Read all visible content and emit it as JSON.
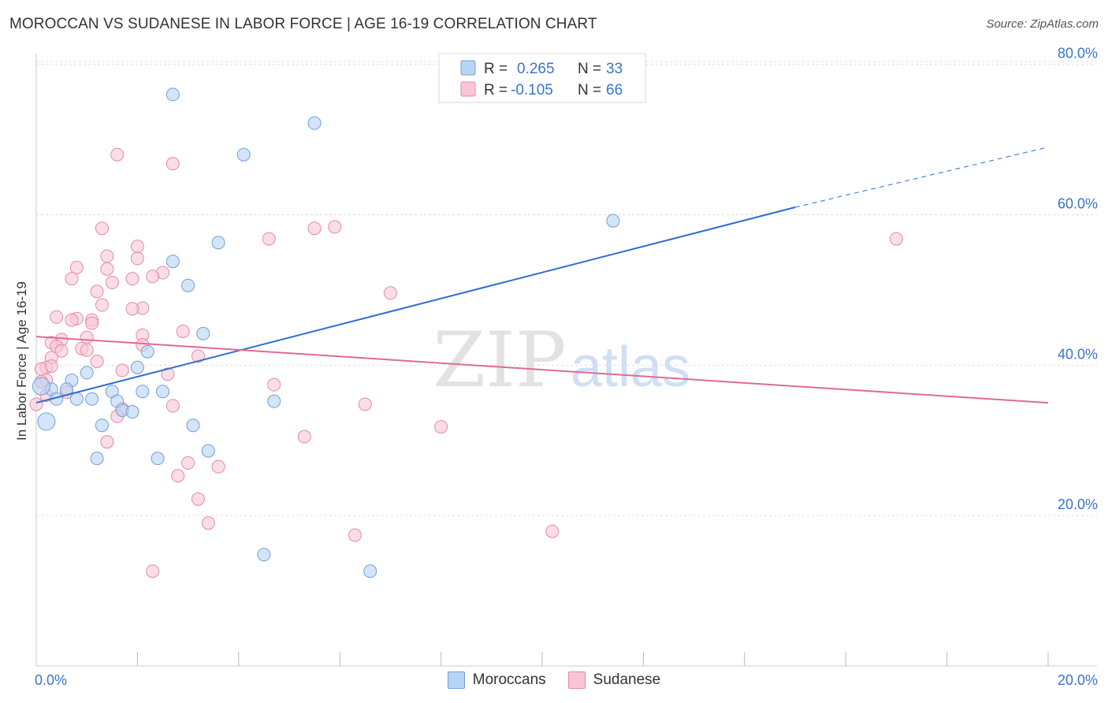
{
  "title": "MOROCCAN VS SUDANESE IN LABOR FORCE | AGE 16-19 CORRELATION CHART",
  "source": "Source: ZipAtlas.com",
  "watermark": {
    "zip": "ZIP",
    "atlas": "atlas"
  },
  "legend_top": {
    "series1": {
      "r_label": "R =",
      "r_value": "0.265",
      "n_label": "N =",
      "n_value": "33"
    },
    "series2": {
      "r_label": "R =",
      "r_value": "-0.105",
      "n_label": "N =",
      "n_value": "66"
    }
  },
  "colors": {
    "moroccans_fill": "#b8d4f5",
    "moroccans_stroke": "#6f9fd8",
    "moroccans_line": "#2a6fcf",
    "sudanese_fill": "#f8c6d6",
    "sudanese_stroke": "#e48aa7",
    "sudanese_line": "#e06a94",
    "value_text": "#3a74c8",
    "grid": "#dddddd"
  },
  "chart_data": {
    "type": "scatter",
    "title": "MOROCCAN VS SUDANESE IN LABOR FORCE | AGE 16-19 CORRELATION CHART",
    "xlabel": "",
    "ylabel": "In Labor Force | Age 16-19",
    "xlim": [
      0,
      20
    ],
    "ylim": [
      0,
      82
    ],
    "x_tick_labels": [
      "0.0%",
      "20.0%"
    ],
    "y_ticks": [
      20,
      40,
      60,
      80
    ],
    "y_tick_labels": [
      "20.0%",
      "40.0%",
      "60.0%",
      "80.0%"
    ],
    "grid": true,
    "series": [
      {
        "name": "Moroccans",
        "r": 0.265,
        "n": 33,
        "trend": {
          "x_start": 0,
          "y_start": 35.0,
          "x_solid_end": 15,
          "y_solid_end": 61.0,
          "x_dash_end": 20,
          "y_dash_end": 69.0
        },
        "points": [
          [
            2.7,
            76.0
          ],
          [
            5.5,
            72.2
          ],
          [
            4.1,
            68.0
          ],
          [
            11.4,
            59.2
          ],
          [
            3.6,
            56.3
          ],
          [
            2.7,
            53.8
          ],
          [
            3.0,
            50.6
          ],
          [
            3.3,
            44.2
          ],
          [
            2.2,
            41.8
          ],
          [
            2.0,
            39.7
          ],
          [
            1.0,
            39.0
          ],
          [
            0.7,
            38.0
          ],
          [
            0.3,
            36.8
          ],
          [
            0.6,
            36.8
          ],
          [
            0.1,
            37.2
          ],
          [
            1.5,
            36.5
          ],
          [
            2.1,
            36.5
          ],
          [
            2.5,
            36.5
          ],
          [
            0.4,
            35.5
          ],
          [
            0.8,
            35.5
          ],
          [
            1.1,
            35.5
          ],
          [
            1.6,
            35.2
          ],
          [
            4.7,
            35.2
          ],
          [
            1.7,
            34.0
          ],
          [
            1.9,
            33.8
          ],
          [
            0.2,
            32.5
          ],
          [
            1.3,
            32.0
          ],
          [
            3.1,
            32.0
          ],
          [
            3.4,
            28.6
          ],
          [
            1.2,
            27.6
          ],
          [
            2.4,
            27.6
          ],
          [
            4.5,
            14.8
          ],
          [
            6.6,
            12.6
          ]
        ]
      },
      {
        "name": "Sudanese",
        "r": -0.105,
        "n": 66,
        "trend": {
          "x_start": 0,
          "y_start": 43.8,
          "x_end": 20,
          "y_end": 35.0
        },
        "points": [
          [
            1.6,
            68.0
          ],
          [
            2.7,
            66.8
          ],
          [
            5.9,
            58.4
          ],
          [
            5.5,
            58.2
          ],
          [
            1.3,
            58.2
          ],
          [
            4.6,
            56.8
          ],
          [
            17.0,
            56.8
          ],
          [
            2.0,
            55.8
          ],
          [
            1.4,
            54.5
          ],
          [
            2.0,
            54.2
          ],
          [
            0.8,
            53.0
          ],
          [
            1.4,
            52.8
          ],
          [
            2.5,
            52.3
          ],
          [
            2.3,
            51.8
          ],
          [
            0.7,
            51.5
          ],
          [
            1.9,
            51.5
          ],
          [
            1.5,
            51.0
          ],
          [
            1.2,
            49.8
          ],
          [
            7.0,
            49.6
          ],
          [
            1.3,
            48.0
          ],
          [
            2.1,
            47.6
          ],
          [
            1.9,
            47.5
          ],
          [
            0.4,
            46.4
          ],
          [
            0.8,
            46.2
          ],
          [
            0.7,
            46.0
          ],
          [
            1.1,
            46.0
          ],
          [
            1.1,
            45.6
          ],
          [
            2.9,
            44.5
          ],
          [
            2.1,
            44.0
          ],
          [
            1.0,
            43.7
          ],
          [
            0.5,
            43.4
          ],
          [
            0.3,
            43.0
          ],
          [
            2.1,
            42.7
          ],
          [
            0.4,
            42.5
          ],
          [
            0.9,
            42.2
          ],
          [
            1.0,
            42.0
          ],
          [
            0.5,
            41.9
          ],
          [
            3.2,
            41.2
          ],
          [
            0.3,
            41.0
          ],
          [
            1.2,
            40.5
          ],
          [
            0.2,
            39.7
          ],
          [
            0.1,
            39.5
          ],
          [
            1.7,
            39.3
          ],
          [
            2.6,
            38.8
          ],
          [
            0.2,
            38.0
          ],
          [
            0.1,
            37.8
          ],
          [
            4.7,
            37.4
          ],
          [
            0.6,
            36.4
          ],
          [
            0.2,
            36.0
          ],
          [
            0.0,
            34.8
          ],
          [
            2.7,
            34.6
          ],
          [
            6.5,
            34.8
          ],
          [
            1.7,
            34.2
          ],
          [
            1.6,
            33.2
          ],
          [
            8.0,
            31.8
          ],
          [
            5.3,
            30.5
          ],
          [
            1.4,
            29.8
          ],
          [
            3.0,
            27.0
          ],
          [
            3.6,
            26.5
          ],
          [
            2.8,
            25.3
          ],
          [
            3.2,
            22.2
          ],
          [
            3.4,
            19.0
          ],
          [
            6.3,
            17.4
          ],
          [
            10.2,
            17.9
          ],
          [
            2.3,
            12.6
          ],
          [
            0.3,
            39.9
          ]
        ]
      }
    ]
  },
  "legend_bottom": [
    {
      "label": "Moroccans"
    },
    {
      "label": "Sudanese"
    }
  ]
}
